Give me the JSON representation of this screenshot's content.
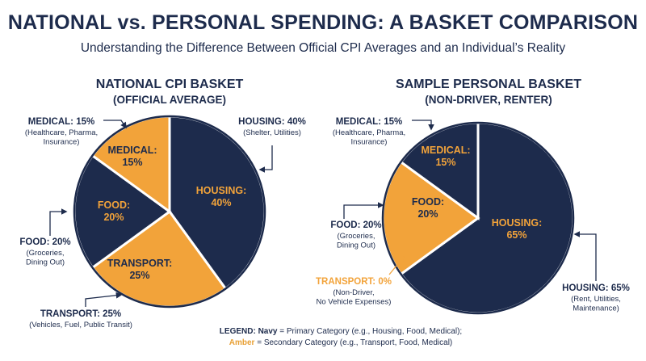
{
  "header": {
    "title": "NATIONAL vs. PERSONAL SPENDING: A BASKET COMPARISON",
    "subtitle": "Understanding the Difference Between Official CPI Averages and an Individual’s Reality"
  },
  "colors": {
    "navy": "#1d2b4c",
    "amber": "#f2a33a",
    "outline": "#ffffff"
  },
  "legend": {
    "label": "LEGEND:",
    "navy_word": "Navy",
    "navy_text": "= Primary Category (e.g., Housing, Food, Medical);",
    "amber_word": "Amber",
    "amber_text": "= Secondary Category (e.g., Transport, Food, Medical)"
  },
  "chart_data": [
    {
      "type": "pie",
      "title": "NATIONAL CPI BASKET",
      "subtitle": "(OFFICIAL AVERAGE)",
      "slices": [
        {
          "key": "housing",
          "label": "HOUSING:",
          "value": 40,
          "pct": "40%",
          "color": "navy",
          "callout": "HOUSING: 40%",
          "callout_sub": [
            "(Shelter, Utilities)"
          ]
        },
        {
          "key": "transport",
          "label": "TRANSPORT:",
          "value": 25,
          "pct": "25%",
          "color": "amber",
          "callout": "TRANSPORT: 25%",
          "callout_sub": [
            "(Vehicles, Fuel, Public Transit)"
          ]
        },
        {
          "key": "food",
          "label": "FOOD:",
          "value": 20,
          "pct": "20%",
          "color": "navy",
          "callout": "FOOD: 20%",
          "callout_sub": [
            "(Groceries,",
            "Dining Out)"
          ]
        },
        {
          "key": "medical",
          "label": "MEDICAL:",
          "value": 15,
          "pct": "15%",
          "color": "amber",
          "callout": "MEDICAL: 15%",
          "callout_sub": [
            "(Healthcare, Pharma,",
            "Insurance)"
          ]
        }
      ]
    },
    {
      "type": "pie",
      "title": "SAMPLE PERSONAL BASKET",
      "subtitle": "(NON-DRIVER, RENTER)",
      "slices": [
        {
          "key": "housing",
          "label": "HOUSING:",
          "value": 65,
          "pct": "65%",
          "color": "navy",
          "callout": "HOUSING: 65%",
          "callout_sub": [
            "(Rent, Utilities,",
            "Maintenance)"
          ]
        },
        {
          "key": "transport",
          "label": "",
          "value": 0,
          "pct": "0%",
          "color": "amber",
          "callout": "TRANSPORT: 0%",
          "callout_sub": [
            "(Non-Driver,",
            "No Vehicle Expenses)"
          ]
        },
        {
          "key": "food",
          "label": "FOOD:",
          "value": 20,
          "pct": "20%",
          "color": "amber",
          "callout": "FOOD: 20%",
          "callout_sub": [
            "(Groceries,",
            "Dining Out)"
          ]
        },
        {
          "key": "medical",
          "label": "MEDICAL:",
          "value": 15,
          "pct": "15%",
          "color": "navy",
          "callout": "MEDICAL: 15%",
          "callout_sub": [
            "(Healthcare, Pharma,",
            "Insurance)"
          ]
        }
      ]
    }
  ]
}
